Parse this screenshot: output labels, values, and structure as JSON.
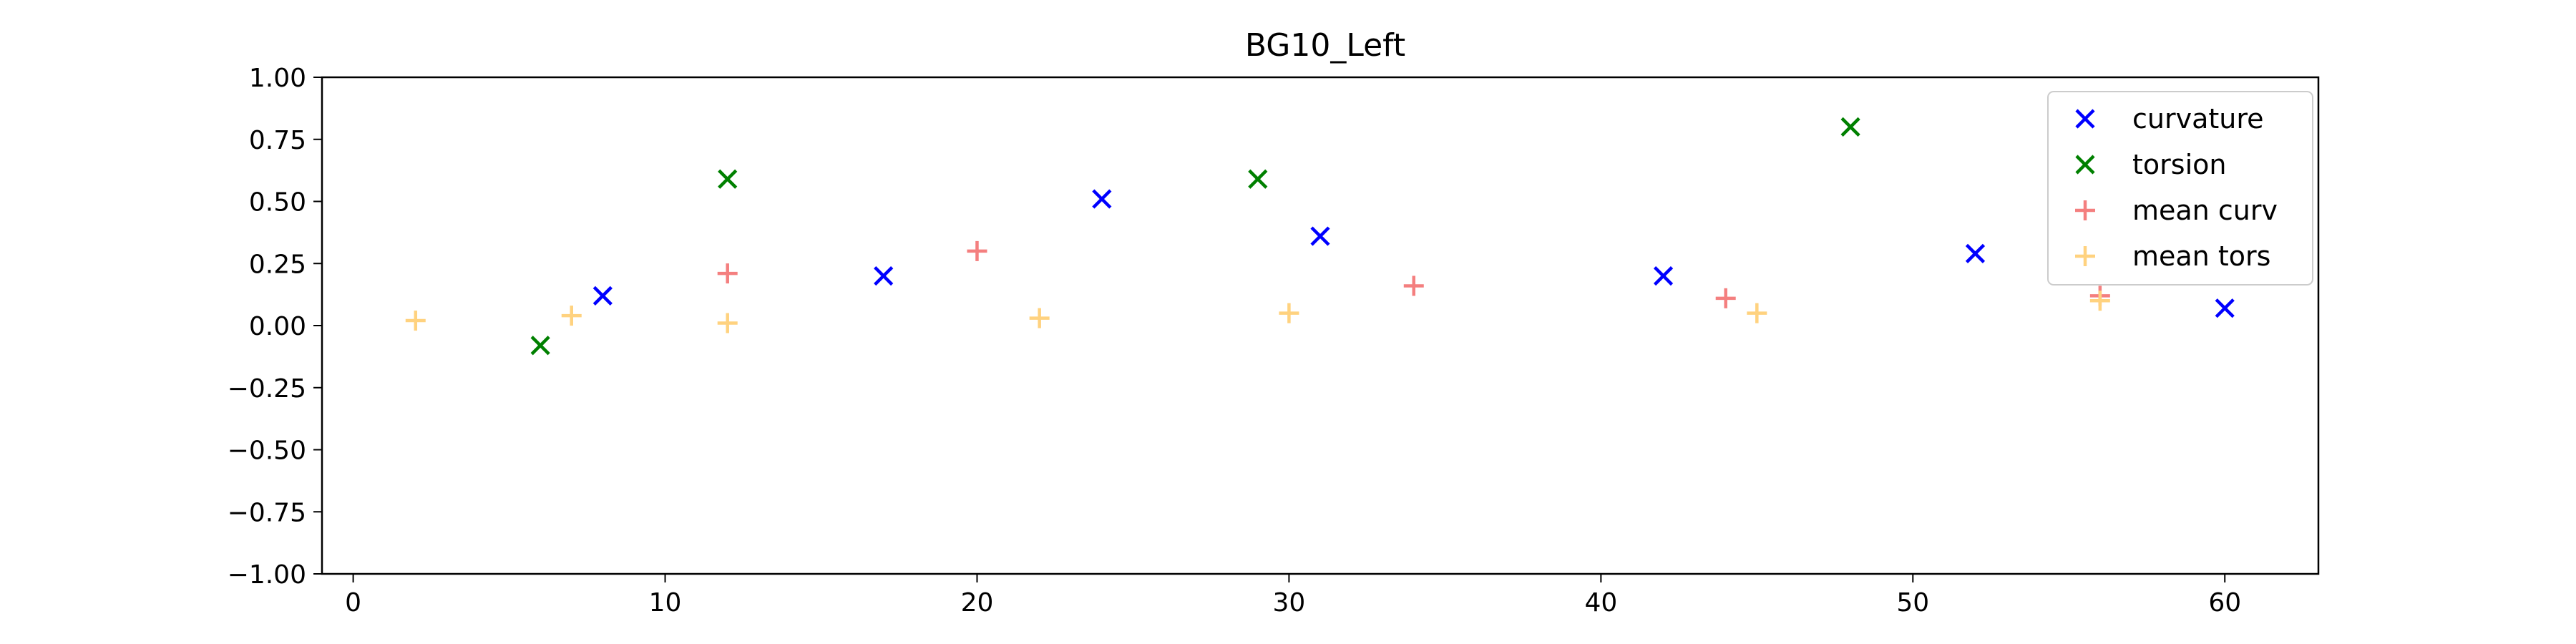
{
  "chart_data": {
    "type": "scatter",
    "title": "BG10_Left",
    "xlabel": "",
    "ylabel": "",
    "xlim": [
      -1,
      63
    ],
    "ylim": [
      -1.0,
      1.0
    ],
    "x_ticks": [
      0,
      10,
      20,
      30,
      40,
      50,
      60
    ],
    "x_tick_labels": [
      "0",
      "10",
      "20",
      "30",
      "40",
      "50",
      "60"
    ],
    "y_ticks": [
      1.0,
      0.75,
      0.5,
      0.25,
      0.0,
      -0.25,
      -0.5,
      -0.75,
      -1.0
    ],
    "y_tick_labels": [
      "1.00",
      "0.75",
      "0.50",
      "0.25",
      "0.00",
      "−0.25",
      "−0.50",
      "−0.75",
      "−1.00"
    ],
    "grid": false,
    "legend_position": "top-right",
    "series": [
      {
        "name": "curvature",
        "marker": "x",
        "color": "#0000ff",
        "points": [
          [
            8,
            0.12
          ],
          [
            17,
            0.2
          ],
          [
            24,
            0.51
          ],
          [
            31,
            0.36
          ],
          [
            42,
            0.2
          ],
          [
            52,
            0.29
          ],
          [
            60,
            0.07
          ]
        ]
      },
      {
        "name": "torsion",
        "marker": "x",
        "color": "#008000",
        "points": [
          [
            6,
            -0.08
          ],
          [
            12,
            0.59
          ],
          [
            29,
            0.59
          ],
          [
            48,
            0.8
          ]
        ]
      },
      {
        "name": "mean curv",
        "marker": "+",
        "color": "#f47f7f",
        "points": [
          [
            12,
            0.21
          ],
          [
            20,
            0.3
          ],
          [
            34,
            0.16
          ],
          [
            44,
            0.11
          ],
          [
            56,
            0.12
          ]
        ]
      },
      {
        "name": "mean tors",
        "marker": "+",
        "color": "#ffd27f",
        "points": [
          [
            2,
            0.02
          ],
          [
            7,
            0.04
          ],
          [
            12,
            0.01
          ],
          [
            22,
            0.03
          ],
          [
            30,
            0.05
          ],
          [
            45,
            0.05
          ],
          [
            56,
            0.1
          ]
        ]
      }
    ]
  }
}
